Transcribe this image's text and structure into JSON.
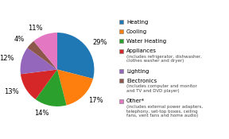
{
  "chart_data": {
    "type": "pie",
    "categories": [
      "Heating",
      "Cooling",
      "Water Heating",
      "Appliances",
      "Lighting",
      "Electronics",
      "Other*"
    ],
    "values": [
      29,
      17,
      14,
      13,
      12,
      4,
      11
    ],
    "value_labels": [
      "29%",
      "17%",
      "14%",
      "13%",
      "12%",
      "4%",
      "11%"
    ],
    "data_labels": true,
    "legend": "right",
    "annotations": [
      {
        "category": "Appliances",
        "text": "(includes refrigerator, dishwasher,\nclothes washer and dryer)"
      },
      {
        "category": "Electronics",
        "text": "(includes computer and monitor\nand TV and DVD player)"
      },
      {
        "category": "Other*",
        "text": "(includes external power adapters,\ntelephony, set-top boxes, ceiling\nfans, vent fans and home audio)"
      }
    ]
  }
}
